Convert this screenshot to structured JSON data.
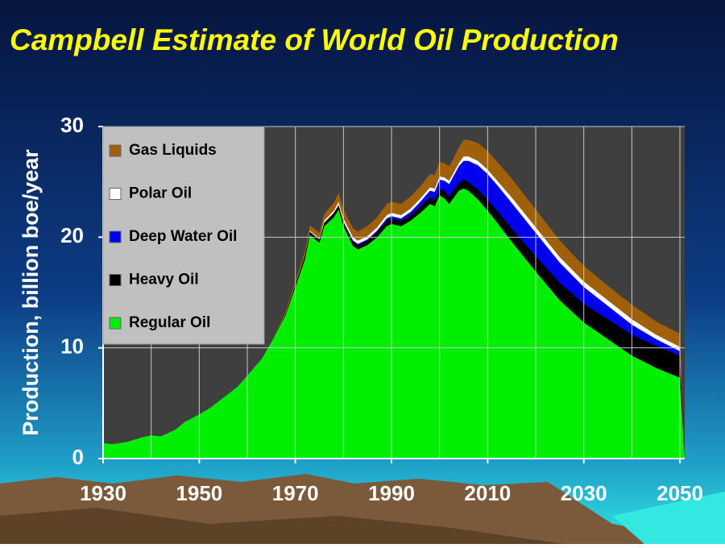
{
  "chart_data": {
    "type": "stacked_area",
    "title": "Campbell Estimate of World Oil Production",
    "y_label": "Production, billion boe/year",
    "x": [
      1930,
      1932,
      1935,
      1938,
      1940,
      1942,
      1945,
      1947,
      1950,
      1952,
      1955,
      1958,
      1960,
      1963,
      1965,
      1968,
      1970,
      1972,
      1973,
      1975,
      1976,
      1978,
      1979,
      1980,
      1982,
      1983,
      1985,
      1987,
      1989,
      1990,
      1992,
      1994,
      1996,
      1998,
      1999,
      2000,
      2001,
      2002,
      2004,
      2005,
      2006,
      2008,
      2010,
      2012,
      2015,
      2020,
      2025,
      2030,
      2035,
      2040,
      2045,
      2050,
      2051
    ],
    "series": [
      {
        "name": "Regular Oil",
        "color": "#00ee00",
        "values": [
          1.4,
          1.3,
          1.5,
          1.9,
          2.1,
          2.0,
          2.6,
          3.3,
          4.0,
          4.5,
          5.5,
          6.5,
          7.5,
          9.0,
          10.5,
          13,
          15.5,
          18,
          20.2,
          19.5,
          21,
          21.8,
          22.5,
          21,
          19.2,
          18.9,
          19.3,
          20,
          21,
          21.2,
          21,
          21.5,
          22.2,
          23,
          22.8,
          23.8,
          23.5,
          23,
          24.2,
          24.4,
          24.2,
          23.4,
          22.4,
          21.3,
          19.6,
          16.9,
          14.3,
          12.3,
          10.8,
          9.3,
          8.2,
          7.3,
          0
        ]
      },
      {
        "name": "Heavy Oil",
        "color": "#000000",
        "values": [
          0,
          0,
          0,
          0,
          0,
          0,
          0,
          0,
          0,
          0,
          0,
          0,
          0,
          0,
          0,
          0.1,
          0.2,
          0.3,
          0.3,
          0.3,
          0.3,
          0.4,
          0.4,
          0.4,
          0.4,
          0.4,
          0.4,
          0.5,
          0.5,
          0.5,
          0.5,
          0.5,
          0.6,
          0.6,
          0.6,
          0.6,
          0.7,
          0.7,
          0.7,
          0.8,
          0.8,
          0.9,
          1.0,
          1.1,
          1.2,
          1.4,
          1.6,
          1.7,
          1.8,
          1.9,
          2.0,
          2.0,
          0
        ]
      },
      {
        "name": "Deep Water Oil",
        "color": "#0000ee",
        "values": [
          0,
          0,
          0,
          0,
          0,
          0,
          0,
          0,
          0,
          0,
          0,
          0,
          0,
          0,
          0,
          0,
          0,
          0,
          0,
          0,
          0,
          0,
          0,
          0,
          0.1,
          0.1,
          0.1,
          0.1,
          0.2,
          0.2,
          0.2,
          0.3,
          0.4,
          0.6,
          0.7,
          0.8,
          0.9,
          1.1,
          1.5,
          1.7,
          1.9,
          2.2,
          2.3,
          2.3,
          2.3,
          2.1,
          1.8,
          1.5,
          1.2,
          0.9,
          0.6,
          0.4,
          0
        ]
      },
      {
        "name": "Polar Oil",
        "color": "#ffffff",
        "values": [
          0,
          0,
          0,
          0,
          0,
          0,
          0,
          0,
          0,
          0,
          0,
          0,
          0,
          0,
          0,
          0,
          0,
          0,
          0.1,
          0.1,
          0.2,
          0.2,
          0.3,
          0.3,
          0.3,
          0.3,
          0.3,
          0.3,
          0.3,
          0.3,
          0.3,
          0.3,
          0.3,
          0.3,
          0.3,
          0.3,
          0.3,
          0.3,
          0.3,
          0.4,
          0.4,
          0.4,
          0.4,
          0.4,
          0.5,
          0.5,
          0.5,
          0.5,
          0.5,
          0.5,
          0.4,
          0.4,
          0
        ]
      },
      {
        "name": "Gas Liquids",
        "color": "#a0600a",
        "values": [
          0,
          0,
          0,
          0,
          0,
          0,
          0,
          0,
          0,
          0,
          0,
          0,
          0,
          0,
          0,
          0.2,
          0.3,
          0.4,
          0.5,
          0.5,
          0.6,
          0.7,
          0.8,
          0.8,
          0.8,
          0.8,
          0.9,
          0.9,
          1.0,
          1.0,
          1.0,
          1.1,
          1.1,
          1.2,
          1.2,
          1.3,
          1.3,
          1.3,
          1.4,
          1.5,
          1.5,
          1.6,
          1.7,
          1.7,
          1.7,
          1.6,
          1.5,
          1.4,
          1.3,
          1.3,
          1.2,
          1.2,
          0
        ]
      }
    ],
    "xlim": [
      1930,
      2051
    ],
    "ylim": [
      0,
      30
    ],
    "xticks": [
      1930,
      1950,
      1970,
      1990,
      2010,
      2030,
      2050
    ],
    "xminor": [
      1940,
      1960,
      1980,
      2000,
      2020,
      2040
    ],
    "yticks": [
      0,
      10,
      20,
      30
    ],
    "grid": true
  }
}
